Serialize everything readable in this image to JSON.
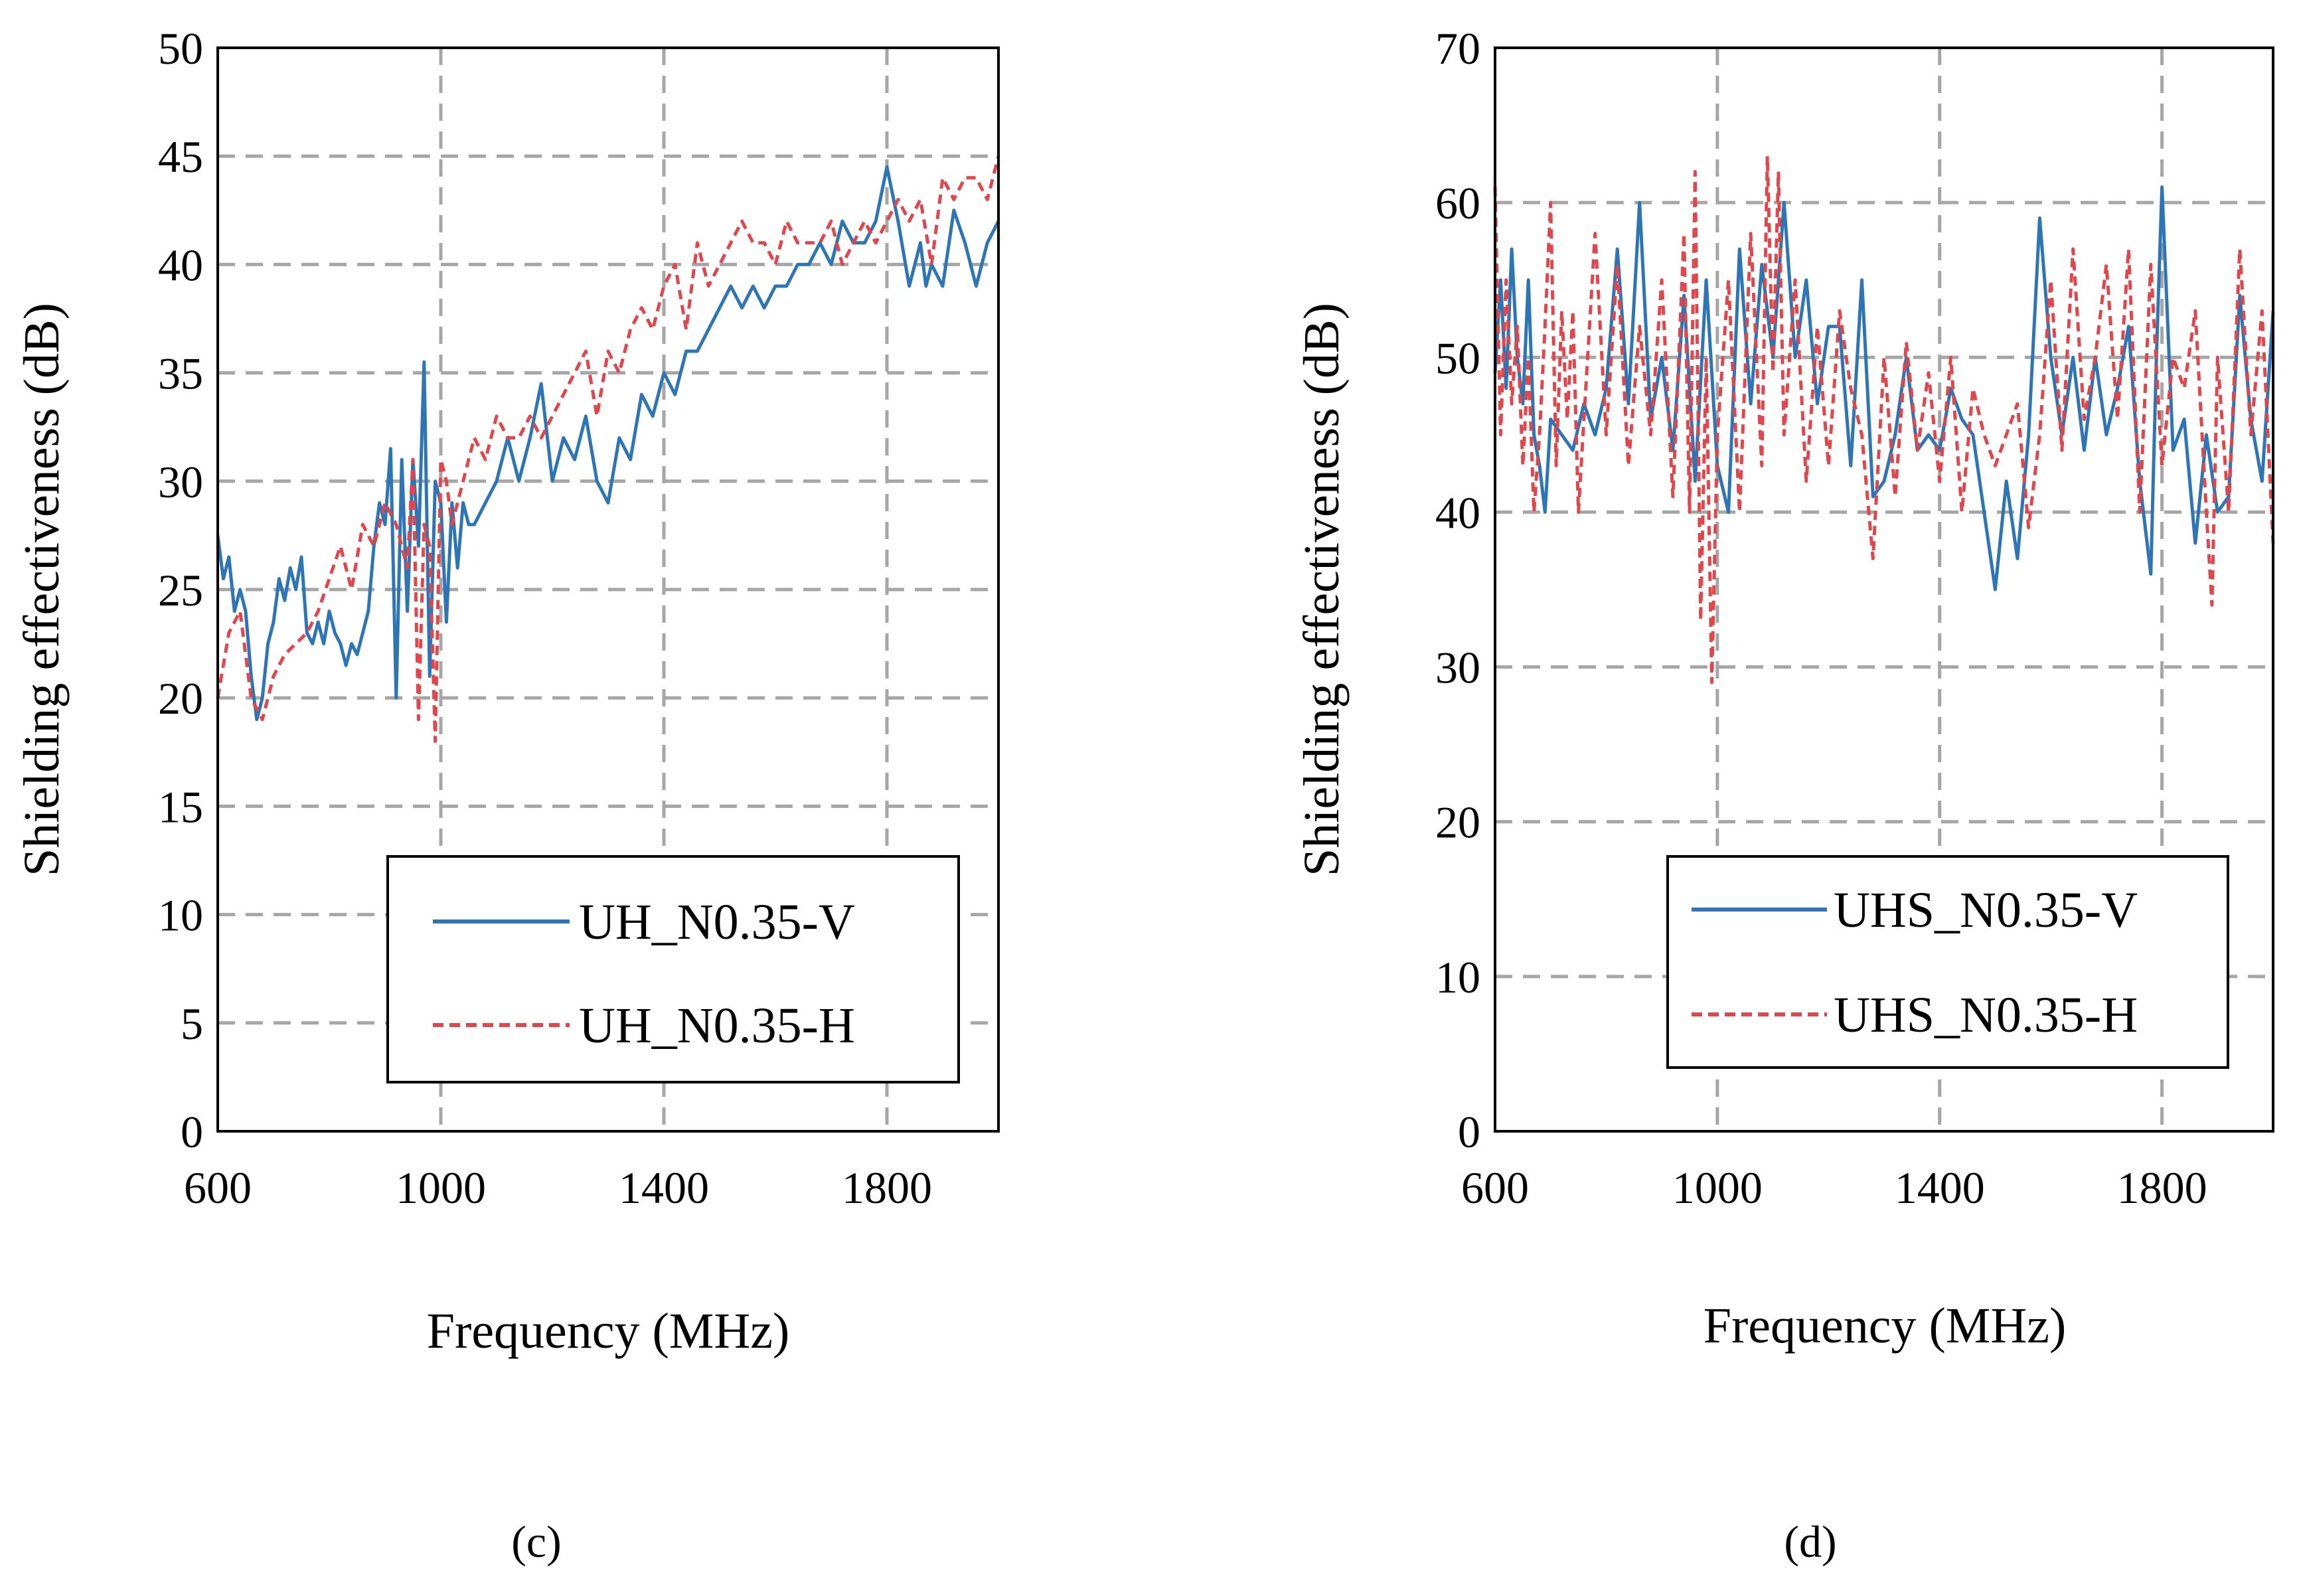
{
  "chart_data": [
    {
      "type": "line",
      "panel_label": "(c)",
      "xlabel": "Frequency (MHz)",
      "ylabel": "Shielding effectiveness (dB)",
      "xlim": [
        600,
        2000
      ],
      "ylim": [
        0,
        50
      ],
      "xticks": [
        600,
        1000,
        1400,
        1800
      ],
      "yticks": [
        0,
        5,
        10,
        15,
        20,
        25,
        30,
        35,
        40,
        45,
        50
      ],
      "grid": true,
      "legend_position": "bottom-right",
      "series": [
        {
          "name": "UH_N0.35-V",
          "color": "#2e75b6",
          "dash": "solid",
          "x": [
            600,
            610,
            620,
            630,
            640,
            650,
            660,
            670,
            680,
            690,
            700,
            710,
            720,
            730,
            740,
            750,
            760,
            770,
            780,
            790,
            800,
            810,
            820,
            830,
            840,
            850,
            860,
            870,
            880,
            890,
            900,
            910,
            920,
            930,
            940,
            950,
            960,
            970,
            980,
            990,
            1000,
            1010,
            1020,
            1030,
            1040,
            1050,
            1060,
            1080,
            1100,
            1120,
            1140,
            1160,
            1180,
            1200,
            1220,
            1240,
            1260,
            1280,
            1300,
            1320,
            1340,
            1360,
            1380,
            1400,
            1420,
            1440,
            1460,
            1480,
            1500,
            1520,
            1540,
            1560,
            1580,
            1600,
            1620,
            1640,
            1660,
            1680,
            1700,
            1720,
            1740,
            1760,
            1780,
            1800,
            1820,
            1840,
            1860,
            1870,
            1880,
            1900,
            1920,
            1940,
            1960,
            1980,
            2000
          ],
          "y": [
            27.5,
            25.5,
            26.5,
            24,
            25,
            24,
            21,
            19,
            20,
            22.5,
            23.5,
            25.5,
            24.5,
            26,
            25,
            26.5,
            23,
            22.5,
            23.5,
            22.5,
            24,
            23,
            22.5,
            21.5,
            22.5,
            22,
            23,
            24,
            27,
            29,
            28,
            31.5,
            20,
            31,
            24,
            31,
            27,
            35.5,
            21,
            30,
            29,
            23.5,
            29,
            26,
            29,
            28,
            28,
            29,
            30,
            32,
            30,
            32,
            34.5,
            30,
            32,
            31,
            33,
            30,
            29,
            32,
            31,
            34,
            33,
            35,
            34,
            36,
            36,
            37,
            38,
            39,
            38,
            39,
            38,
            39,
            39,
            40,
            40,
            41,
            40,
            42,
            41,
            41,
            42,
            44.5,
            42,
            39,
            41,
            39,
            40,
            39,
            42.5,
            41,
            39,
            41,
            42
          ],
          "y_note": "approximate"
        },
        {
          "name": "UH_N0.35-H",
          "color": "#e0474c",
          "dash": "dashed",
          "x": [
            600,
            620,
            640,
            660,
            680,
            700,
            720,
            740,
            760,
            780,
            800,
            820,
            840,
            860,
            880,
            900,
            920,
            940,
            950,
            960,
            970,
            980,
            990,
            1000,
            1010,
            1020,
            1040,
            1060,
            1080,
            1100,
            1120,
            1140,
            1160,
            1180,
            1200,
            1220,
            1240,
            1260,
            1280,
            1300,
            1320,
            1340,
            1360,
            1380,
            1400,
            1420,
            1440,
            1460,
            1480,
            1500,
            1520,
            1540,
            1560,
            1580,
            1600,
            1620,
            1640,
            1660,
            1680,
            1700,
            1720,
            1740,
            1760,
            1780,
            1800,
            1820,
            1840,
            1860,
            1880,
            1900,
            1920,
            1940,
            1960,
            1980,
            2000
          ],
          "y": [
            20,
            23,
            24,
            20,
            19,
            21,
            22,
            22.5,
            23,
            24,
            25.5,
            27,
            25,
            28,
            27,
            29,
            28,
            26,
            31,
            19,
            28,
            27,
            18,
            31,
            30,
            28,
            30,
            32,
            31,
            33,
            32,
            32,
            33,
            32,
            33,
            34,
            35,
            36,
            33,
            36,
            35,
            37,
            38,
            37,
            39,
            40,
            37,
            41,
            39,
            40,
            41,
            42,
            41,
            41,
            40,
            42,
            41,
            41,
            41,
            42,
            40,
            41,
            42,
            41,
            42,
            43,
            42,
            43,
            40,
            44,
            43,
            44,
            44,
            43,
            45
          ],
          "y_note": "approximate"
        }
      ]
    },
    {
      "type": "line",
      "panel_label": "(d)",
      "xlabel": "Frequency (MHz)",
      "ylabel": "Shielding effectiveness (dB)",
      "xlim": [
        600,
        2000
      ],
      "ylim": [
        0,
        70
      ],
      "xticks": [
        600,
        1000,
        1400,
        1800
      ],
      "yticks": [
        0,
        10,
        20,
        30,
        40,
        50,
        60,
        70
      ],
      "grid": true,
      "legend_position": "bottom-right",
      "series": [
        {
          "name": "UHS_N0.35-V",
          "color": "#2e75b6",
          "dash": "solid",
          "x": [
            600,
            610,
            620,
            630,
            640,
            650,
            660,
            670,
            680,
            690,
            700,
            720,
            740,
            760,
            780,
            800,
            820,
            840,
            860,
            880,
            900,
            920,
            940,
            960,
            980,
            1000,
            1020,
            1040,
            1060,
            1080,
            1100,
            1120,
            1140,
            1160,
            1180,
            1200,
            1220,
            1240,
            1260,
            1280,
            1300,
            1320,
            1340,
            1360,
            1380,
            1400,
            1420,
            1440,
            1460,
            1480,
            1500,
            1520,
            1540,
            1560,
            1580,
            1600,
            1620,
            1640,
            1660,
            1680,
            1700,
            1720,
            1740,
            1760,
            1780,
            1790,
            1800,
            1820,
            1840,
            1860,
            1880,
            1900,
            1920,
            1940,
            1960,
            1980,
            2000
          ],
          "y": [
            49,
            55,
            48,
            57,
            50,
            47,
            55,
            45,
            43,
            40,
            46,
            45,
            44,
            47,
            45,
            48,
            57,
            47,
            60,
            46,
            50,
            44,
            54,
            42,
            55,
            43,
            40,
            57,
            47,
            56,
            50,
            60,
            50,
            55,
            47,
            52,
            52,
            43,
            55,
            41,
            42,
            45,
            50,
            44,
            45,
            44,
            48,
            46,
            45,
            40,
            35,
            42,
            37,
            45,
            59,
            50,
            45,
            50,
            44,
            50,
            45,
            48,
            52,
            42,
            36,
            50,
            61,
            44,
            46,
            38,
            45,
            40,
            41,
            54,
            46,
            42,
            53
          ],
          "y_note": "approximate"
        },
        {
          "name": "UHS_N0.35-H",
          "color": "#e0474c",
          "dash": "dashed",
          "x": [
            600,
            610,
            620,
            630,
            640,
            650,
            660,
            670,
            680,
            690,
            700,
            710,
            720,
            730,
            740,
            750,
            760,
            780,
            800,
            820,
            840,
            860,
            880,
            900,
            920,
            940,
            950,
            960,
            970,
            980,
            990,
            1000,
            1020,
            1040,
            1060,
            1080,
            1090,
            1100,
            1110,
            1120,
            1140,
            1160,
            1180,
            1200,
            1220,
            1240,
            1260,
            1280,
            1300,
            1320,
            1340,
            1360,
            1380,
            1400,
            1420,
            1440,
            1460,
            1480,
            1500,
            1520,
            1540,
            1560,
            1580,
            1600,
            1620,
            1640,
            1660,
            1680,
            1700,
            1720,
            1740,
            1760,
            1780,
            1800,
            1820,
            1840,
            1860,
            1880,
            1890,
            1900,
            1920,
            1940,
            1960,
            1980,
            2000
          ],
          "y": [
            61,
            45,
            55,
            47,
            52,
            43,
            50,
            40,
            45,
            52,
            60,
            43,
            53,
            46,
            53,
            40,
            46,
            58,
            45,
            56,
            43,
            52,
            45,
            55,
            41,
            58,
            40,
            62,
            33,
            50,
            29,
            45,
            55,
            40,
            58,
            43,
            63,
            49,
            62,
            45,
            55,
            42,
            52,
            43,
            53,
            48,
            45,
            37,
            50,
            41,
            51,
            44,
            49,
            42,
            50,
            40,
            48,
            45,
            43,
            45,
            47,
            39,
            45,
            55,
            44,
            57,
            46,
            50,
            56,
            46,
            57,
            40,
            56,
            43,
            50,
            48,
            53,
            40,
            34,
            50,
            40,
            57,
            45,
            53,
            38
          ],
          "y_note": "approximate"
        }
      ]
    }
  ]
}
